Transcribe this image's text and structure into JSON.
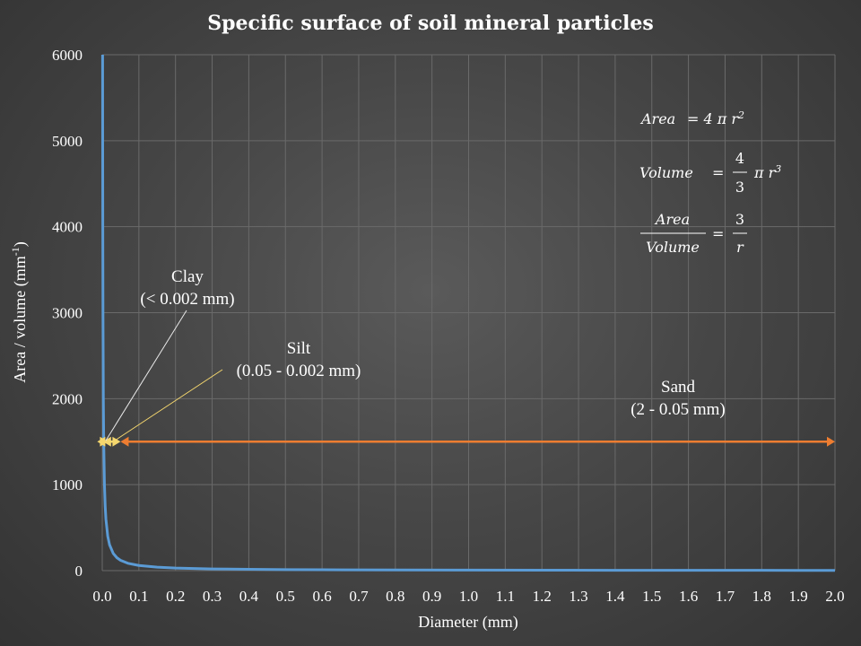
{
  "chart_data": {
    "type": "line",
    "title": "Specific surface of soil mineral particles",
    "xlabel": "Diameter  (mm)",
    "ylabel_main": "Area / volume  (mm",
    "ylabel_sup": "-1",
    "ylabel_end": ")",
    "xlim": [
      0,
      2.0
    ],
    "ylim": [
      0,
      6000
    ],
    "x_ticks": [
      "0.0",
      "0.1",
      "0.2",
      "0.3",
      "0.4",
      "0.5",
      "0.6",
      "0.7",
      "0.8",
      "0.9",
      "1.0",
      "1.1",
      "1.2",
      "1.3",
      "1.4",
      "1.5",
      "1.6",
      "1.7",
      "1.8",
      "1.9",
      "2.0"
    ],
    "y_ticks": [
      "0",
      "1000",
      "2000",
      "3000",
      "4000",
      "5000",
      "6000"
    ],
    "grid": true,
    "series": [
      {
        "color": "#5b9bd5",
        "x": [
          0.001,
          0.0012,
          0.0015,
          0.002,
          0.003,
          0.004,
          0.006,
          0.008,
          0.01,
          0.015,
          0.02,
          0.03,
          0.04,
          0.05,
          0.07,
          0.1,
          0.15,
          0.2,
          0.3,
          0.4,
          0.5,
          0.6,
          0.8,
          1.0,
          1.2,
          1.4,
          1.6,
          1.8,
          2.0
        ],
        "y": [
          6000,
          5000,
          4000,
          3000,
          2000,
          1500,
          1000,
          750,
          600,
          400,
          300,
          200,
          150,
          120,
          85.7,
          60,
          40,
          30,
          20,
          15,
          12,
          10,
          7.5,
          6,
          5,
          4.3,
          3.75,
          3.33,
          3
        ]
      }
    ],
    "ranges": [
      {
        "name": "Clay",
        "range_label": "(< 0.002 mm)",
        "x_from": 0.0,
        "x_to": 0.002,
        "y": 1500,
        "color": "#f5d76e"
      },
      {
        "name": "Silt",
        "range_label": "(0.05 - 0.002 mm)",
        "x_from": 0.002,
        "x_to": 0.05,
        "y": 1500,
        "color": "#f5d76e"
      },
      {
        "name": "Sand",
        "range_label": "(2 - 0.05 mm)",
        "x_from": 0.05,
        "x_to": 2.0,
        "y": 1500,
        "color": "#ed7d31"
      }
    ],
    "formulas": {
      "area_lhs": "Area",
      "area_rhs": "= 4 π r",
      "area_exp": "2",
      "volume_lhs": "Volume",
      "volume_eq": "=",
      "volume_num": "4",
      "volume_den": "3",
      "volume_rest": "π r",
      "volume_exp": "3",
      "ratio_num": "Area",
      "ratio_den": "Volume",
      "ratio_eq": "=",
      "ratio_rnum": "3",
      "ratio_rden": "r"
    }
  }
}
